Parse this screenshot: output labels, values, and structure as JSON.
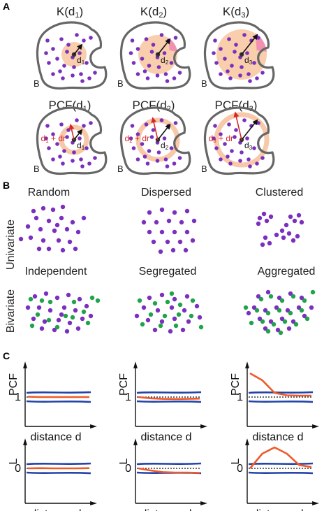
{
  "panels": {
    "a": {
      "letter": "A",
      "k_functions": [
        {
          "name": "K",
          "arg": "d",
          "sub": "1"
        },
        {
          "name": "K",
          "arg": "d",
          "sub": "2"
        },
        {
          "name": "K",
          "arg": "d",
          "sub": "3"
        }
      ],
      "pcf_functions": [
        {
          "name": "PCF",
          "arg": "d",
          "sub": "1"
        },
        {
          "name": "PCF",
          "arg": "d",
          "sub": "2"
        },
        {
          "name": "PCF",
          "arg": "d",
          "sub": "3"
        }
      ],
      "boundary_label": "B",
      "radius_label": "d",
      "shell_label": {
        "d": "d",
        "plus_dr": " + dr"
      }
    },
    "b": {
      "letter": "B",
      "row_labels": [
        "Univariate",
        "Bivariate"
      ],
      "univariate": [
        "Random",
        "Dispersed",
        "Clustered"
      ],
      "bivariate": [
        "Independent",
        "Segregated",
        "Aggregated"
      ]
    },
    "c": {
      "letter": "C",
      "top_ylabel": "PCF",
      "top_ref": "1",
      "bottom_ylabel": "L",
      "bottom_ref": "0",
      "xlabel": "distance d"
    }
  },
  "colors": {
    "purple_point": "#7b2fbe",
    "green_point": "#21a34a",
    "k_disk": "#f7c59f",
    "k_overflow": "#f08ab0",
    "pcf_ring": "#f7c9a8",
    "envelope": "#2344a8",
    "observed": "#ef5a2a",
    "boundary": "#666666",
    "arrow_red": "#d6282a"
  },
  "chart_data": [
    {
      "type": "line",
      "row": "PCF",
      "column": "independent",
      "ylabel": "PCF",
      "xlabel": "distance d",
      "reference_line": 1,
      "series": [
        {
          "values": [
            1.05,
            1.0,
            1.0,
            1.0,
            1.0,
            1.0
          ]
        }
      ]
    },
    {
      "type": "line",
      "row": "PCF",
      "column": "segregated",
      "ylabel": "PCF",
      "xlabel": "distance d",
      "reference_line": 1,
      "series": [
        {
          "values": [
            1.0,
            0.82,
            0.74,
            0.72,
            0.74,
            0.78
          ]
        }
      ]
    },
    {
      "type": "line",
      "row": "PCF",
      "column": "aggregated",
      "ylabel": "PCF",
      "xlabel": "distance d",
      "reference_line": 1,
      "series": [
        {
          "values": [
            4.4,
            3.4,
            1.6,
            1.25,
            1.2,
            1.2
          ]
        }
      ]
    },
    {
      "type": "line",
      "row": "L",
      "column": "independent",
      "ylabel": "L",
      "xlabel": "distance d",
      "reference_line": 0,
      "series": [
        {
          "values": [
            0.0,
            0.05,
            0.0,
            0.0,
            0.0,
            0.05
          ]
        }
      ]
    },
    {
      "type": "line",
      "row": "L",
      "column": "segregated",
      "ylabel": "L",
      "xlabel": "distance d",
      "reference_line": 0,
      "series": [
        {
          "values": [
            0.0,
            -0.5,
            -0.9,
            -1.0,
            -1.0,
            -1.1
          ]
        }
      ]
    },
    {
      "type": "line",
      "row": "L",
      "column": "aggregated",
      "ylabel": "L",
      "xlabel": "distance d",
      "reference_line": 0,
      "series": [
        {
          "values": [
            0.0,
            3.5,
            5.0,
            3.5,
            0.8,
            0.3
          ]
        }
      ]
    }
  ]
}
